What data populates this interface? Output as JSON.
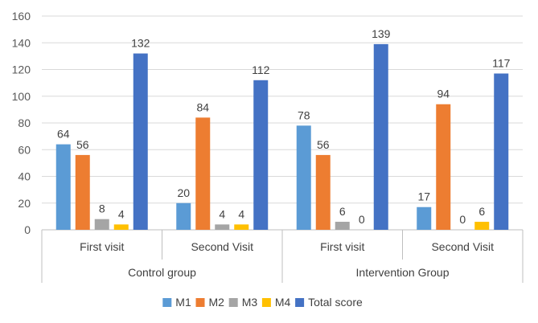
{
  "chart_data": {
    "type": "bar",
    "title": "",
    "xlabel": "",
    "ylabel": "",
    "ylim": [
      0,
      160
    ],
    "yticks": [
      0,
      20,
      40,
      60,
      80,
      100,
      120,
      140,
      160
    ],
    "grid": true,
    "legend_position": "bottom",
    "groups": [
      {
        "label": "Control group",
        "categories": [
          "First visit",
          "Second Visit"
        ]
      },
      {
        "label": "Intervention Group",
        "categories": [
          "First visit",
          "Second Visit"
        ]
      }
    ],
    "series": [
      {
        "name": "M1",
        "color": "#5B9BD5",
        "values": [
          64,
          20,
          78,
          17
        ]
      },
      {
        "name": "M2",
        "color": "#ED7D31",
        "values": [
          56,
          84,
          56,
          94
        ]
      },
      {
        "name": "M3",
        "color": "#A5A5A5",
        "values": [
          8,
          4,
          6,
          0
        ]
      },
      {
        "name": "M4",
        "color": "#FFC000",
        "values": [
          4,
          4,
          0,
          6
        ]
      },
      {
        "name": "Total score",
        "color": "#4472C4",
        "values": [
          132,
          112,
          139,
          117
        ]
      }
    ]
  }
}
